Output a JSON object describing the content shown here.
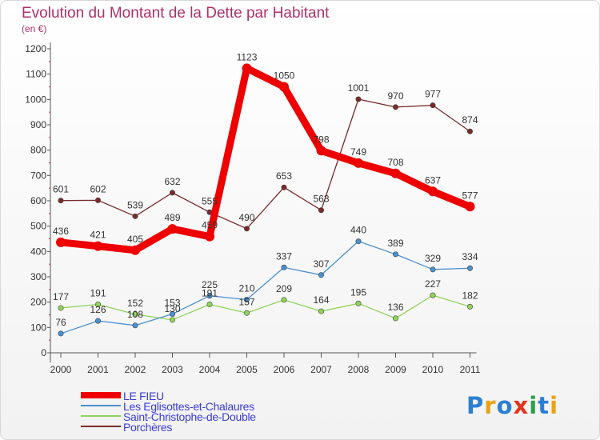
{
  "header": {
    "title": "Evolution du Montant de la Dette par Habitant",
    "unit": "(en €)"
  },
  "logo": {
    "text": "Proxiti",
    "colors": [
      "#2a7fd4",
      "#e8a21a",
      "#2a7fd4",
      "#e8321a",
      "#2aa04a",
      "#2a7fd4",
      "#e8a21a"
    ]
  },
  "chart_data": {
    "type": "line",
    "title": "Evolution du Montant de la Dette par Habitant",
    "subtitle": "(en €)",
    "x": [
      "2000",
      "2001",
      "2002",
      "2003",
      "2004",
      "2005",
      "2006",
      "2007",
      "2008",
      "2009",
      "2010",
      "2011"
    ],
    "ylim": [
      0,
      1200
    ],
    "yticks": [
      0,
      100,
      200,
      300,
      400,
      500,
      600,
      700,
      800,
      900,
      1000,
      1100,
      1200
    ],
    "grid": false,
    "legend_position": "bottom-left",
    "series": [
      {
        "name": "LE FIEU",
        "color": "#ee0000",
        "values": [
          436,
          421,
          405,
          489,
          459,
          1123,
          1050,
          798,
          749,
          708,
          637,
          577
        ]
      },
      {
        "name": "Les Eglisottes-et-Chalaures",
        "color": "#4a8fcf",
        "values": [
          76,
          126,
          108,
          153,
          225,
          210,
          337,
          307,
          440,
          389,
          329,
          334
        ]
      },
      {
        "name": "Saint-Christophe-de-Double",
        "color": "#8fd45a",
        "values": [
          177,
          191,
          152,
          130,
          191,
          157,
          209,
          164,
          195,
          136,
          227,
          182
        ]
      },
      {
        "name": "Porchères",
        "color": "#7a2a2a",
        "values": [
          601,
          602,
          539,
          632,
          555,
          490,
          653,
          563,
          1001,
          970,
          977,
          874
        ]
      }
    ]
  }
}
